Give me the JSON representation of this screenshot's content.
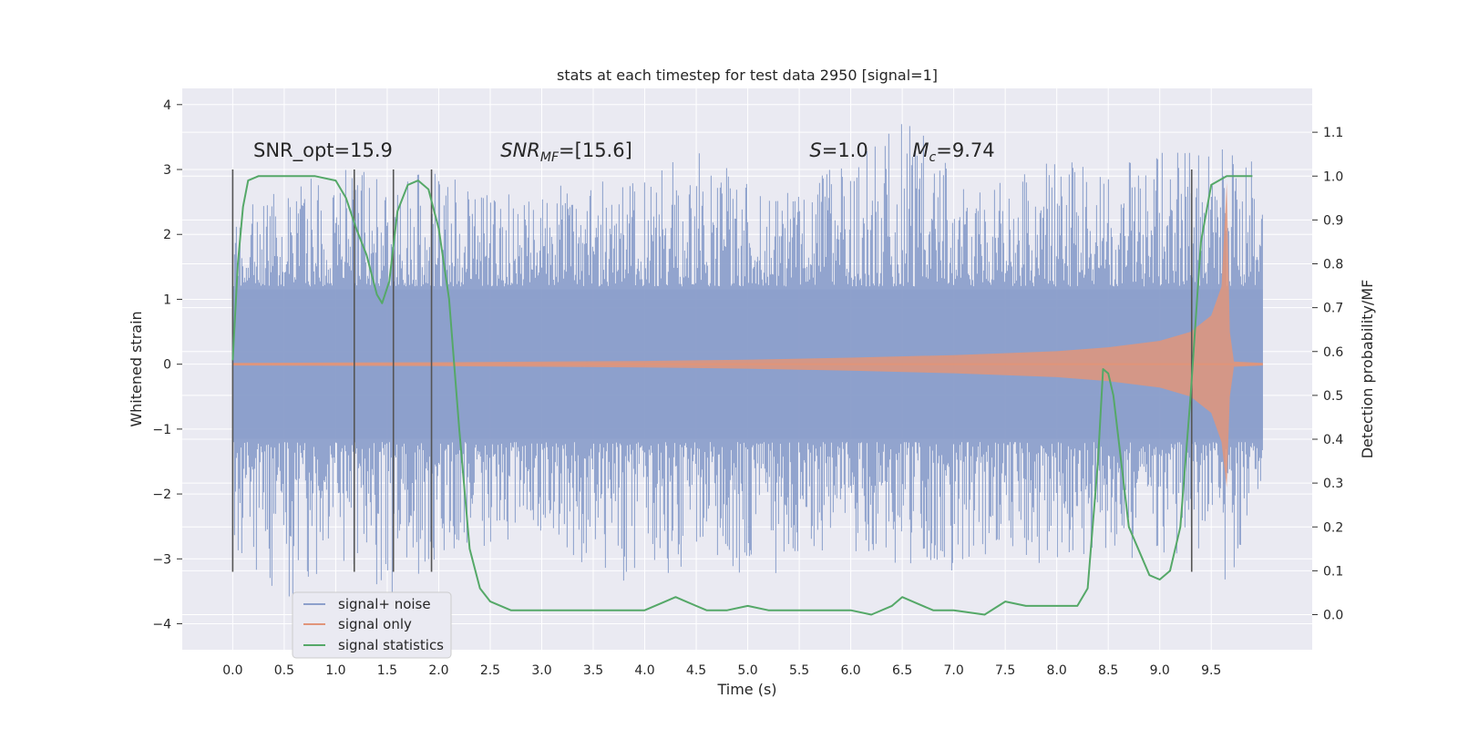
{
  "chart_data": {
    "type": "line",
    "title": "stats at each timestep for test data 2950 [signal=1]",
    "xlabel": "Time (s)",
    "ylabel": "Whitened strain",
    "y2label": "Detection probability/MF",
    "xlim": [
      -0.49,
      10.48
    ],
    "ylim": [
      -4.4,
      4.25
    ],
    "y2lim": [
      -0.08,
      1.2
    ],
    "x_ticks": [
      0.0,
      0.5,
      1.0,
      1.5,
      2.0,
      2.5,
      3.0,
      3.5,
      4.0,
      4.5,
      5.0,
      5.5,
      6.0,
      6.5,
      7.0,
      7.5,
      8.0,
      8.5,
      9.0,
      9.5
    ],
    "y_ticks": [
      -4,
      -3,
      -2,
      -1,
      0,
      1,
      2,
      3,
      4
    ],
    "y2_ticks": [
      0.0,
      0.1,
      0.2,
      0.3,
      0.4,
      0.5,
      0.6,
      0.7,
      0.8,
      0.9,
      1.0,
      1.1
    ],
    "grid": true,
    "legend_position": "lower-left",
    "colors": {
      "background": "#eaeaf2",
      "grid": "#ffffff",
      "noise": "#8da0cb",
      "signal": "#e1957a",
      "statistics": "#55a868",
      "marker": "#555555"
    },
    "annotations": [
      {
        "text": "SNR_opt=15.9",
        "x": 0.2,
        "y": 3.2
      },
      {
        "text": "SNR",
        "sub": "MF",
        "rest": "=[15.6]",
        "x": 2.6,
        "y": 3.2
      },
      {
        "text": "S",
        "rest": "=1.0",
        "x": 5.6,
        "y": 3.2
      },
      {
        "text": "M",
        "sub": "c",
        "rest": "=9.74",
        "x": 6.6,
        "y": 3.2
      }
    ],
    "vertical_markers": [
      0.0,
      1.18,
      1.56,
      1.93,
      9.31
    ],
    "marker_range": [
      -3.2,
      3.0
    ],
    "series": [
      {
        "name": "signal+ noise",
        "envelope": {
          "x": [
            0.0,
            0.5,
            1.0,
            1.5,
            2.0,
            2.5,
            3.0,
            3.5,
            4.0,
            4.5,
            5.0,
            5.5,
            6.0,
            6.5,
            7.0,
            7.5,
            8.0,
            8.5,
            9.0,
            9.5,
            9.65,
            10.0
          ],
          "upper": [
            2.2,
            3.0,
            3.3,
            2.8,
            3.0,
            2.6,
            2.7,
            2.9,
            2.8,
            3.4,
            2.8,
            2.7,
            3.2,
            3.85,
            3.1,
            2.9,
            3.2,
            3.0,
            3.3,
            3.3,
            3.5,
            3.1
          ],
          "lower": [
            -2.8,
            -3.8,
            -3.0,
            -3.6,
            -3.0,
            -2.9,
            -2.8,
            -3.2,
            -3.5,
            -3.0,
            -3.5,
            -3.0,
            -2.9,
            -3.1,
            -3.2,
            -2.9,
            -3.3,
            -3.0,
            -3.0,
            -2.9,
            -3.5,
            -2.0
          ]
        }
      },
      {
        "name": "signal only",
        "envelope": {
          "x": [
            0.0,
            2.0,
            4.0,
            5.0,
            6.0,
            7.0,
            8.0,
            8.5,
            9.0,
            9.3,
            9.5,
            9.6,
            9.65,
            9.68,
            9.72,
            10.0
          ],
          "upper": [
            0.02,
            0.03,
            0.05,
            0.07,
            0.1,
            0.14,
            0.2,
            0.26,
            0.36,
            0.5,
            0.75,
            1.2,
            2.8,
            0.5,
            0.04,
            0.02
          ],
          "lower": [
            -0.02,
            -0.03,
            -0.05,
            -0.07,
            -0.1,
            -0.14,
            -0.2,
            -0.26,
            -0.36,
            -0.5,
            -0.75,
            -1.2,
            -1.9,
            -0.5,
            -0.04,
            -0.02
          ]
        }
      },
      {
        "name": "signal statistics",
        "axis": "right",
        "x": [
          0.0,
          0.05,
          0.1,
          0.15,
          0.25,
          0.5,
          0.8,
          1.0,
          1.1,
          1.2,
          1.3,
          1.4,
          1.45,
          1.52,
          1.6,
          1.7,
          1.8,
          1.9,
          2.0,
          2.1,
          2.2,
          2.3,
          2.4,
          2.5,
          2.7,
          3.0,
          3.5,
          4.0,
          4.2,
          4.3,
          4.4,
          4.6,
          4.8,
          5.0,
          5.2,
          5.5,
          5.8,
          6.0,
          6.2,
          6.4,
          6.5,
          6.6,
          6.8,
          7.0,
          7.3,
          7.5,
          7.7,
          8.0,
          8.2,
          8.3,
          8.4,
          8.45,
          8.5,
          8.55,
          8.7,
          8.9,
          9.0,
          9.1,
          9.2,
          9.3,
          9.4,
          9.5,
          9.65,
          9.9
        ],
        "y": [
          0.58,
          0.8,
          0.93,
          0.99,
          1.0,
          1.0,
          1.0,
          0.99,
          0.95,
          0.88,
          0.82,
          0.73,
          0.71,
          0.76,
          0.92,
          0.98,
          0.99,
          0.97,
          0.88,
          0.72,
          0.42,
          0.15,
          0.06,
          0.03,
          0.01,
          0.01,
          0.01,
          0.01,
          0.03,
          0.04,
          0.03,
          0.01,
          0.01,
          0.02,
          0.01,
          0.01,
          0.01,
          0.01,
          0.0,
          0.02,
          0.04,
          0.03,
          0.01,
          0.01,
          0.0,
          0.03,
          0.02,
          0.02,
          0.02,
          0.06,
          0.35,
          0.56,
          0.55,
          0.5,
          0.2,
          0.09,
          0.08,
          0.1,
          0.2,
          0.5,
          0.85,
          0.98,
          1.0,
          1.0
        ]
      }
    ]
  }
}
